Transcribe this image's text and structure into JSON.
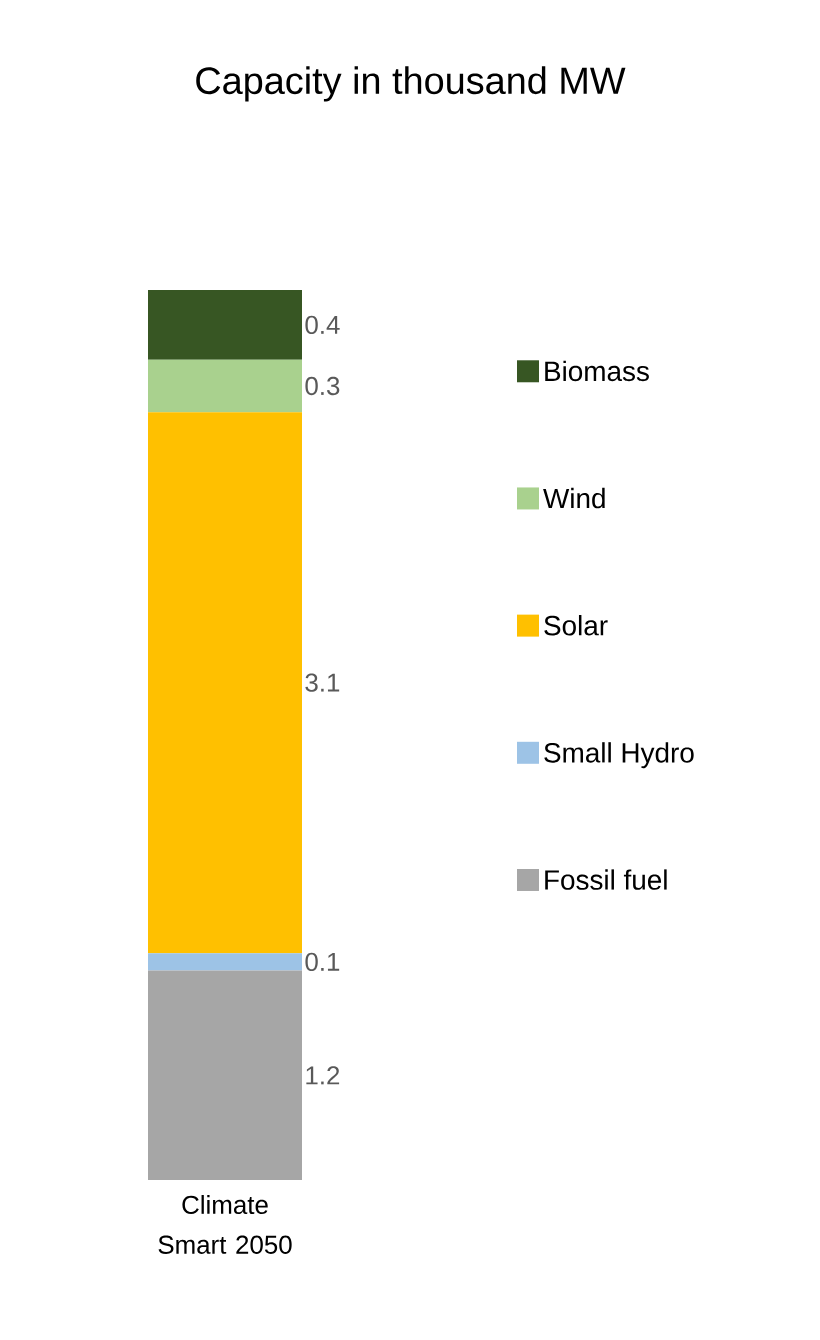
{
  "chart_data": {
    "type": "bar",
    "title": "Capacity in thousand MW",
    "stacked": true,
    "categories": [
      "Climate Smart 2050"
    ],
    "series": [
      {
        "name": "Fossil fuel",
        "color": "#a6a6a6",
        "values": [
          1.2
        ]
      },
      {
        "name": "Small Hydro",
        "color": "#9dc3e6",
        "values": [
          0.1
        ]
      },
      {
        "name": "Solar",
        "color": "#ffc000",
        "values": [
          3.1
        ]
      },
      {
        "name": "Wind",
        "color": "#a9d18e",
        "values": [
          0.3
        ]
      },
      {
        "name": "Biomass",
        "color": "#375623",
        "values": [
          0.4
        ]
      }
    ],
    "data_labels": true,
    "legend": "right"
  }
}
